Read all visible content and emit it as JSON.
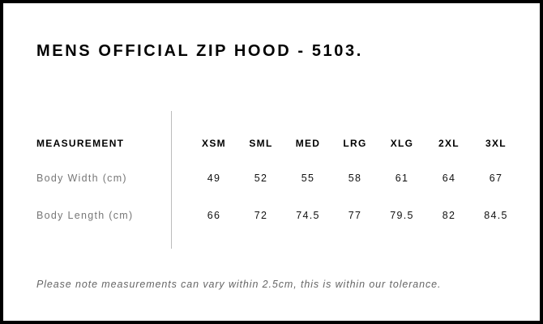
{
  "title": "MENS OFFICIAL ZIP HOOD - 5103.",
  "table": {
    "header": {
      "label": "MEASUREMENT",
      "sizes": [
        "XSM",
        "SML",
        "MED",
        "LRG",
        "XLG",
        "2XL",
        "3XL"
      ]
    },
    "rows": [
      {
        "label": "Body Width (cm)",
        "values": [
          "49",
          "52",
          "55",
          "58",
          "61",
          "64",
          "67"
        ]
      },
      {
        "label": "Body Length (cm)",
        "values": [
          "66",
          "72",
          "74.5",
          "77",
          "79.5",
          "82",
          "84.5"
        ]
      }
    ]
  },
  "note": "Please note measurements can vary within 2.5cm, this is within our tolerance."
}
